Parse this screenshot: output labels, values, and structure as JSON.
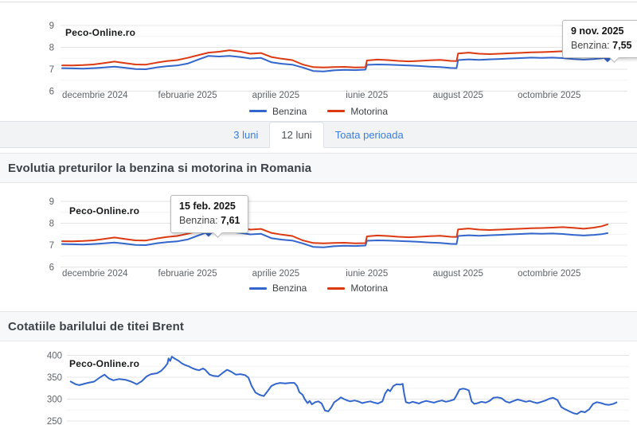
{
  "site": {
    "watermark": "Peco-Online.ro"
  },
  "tabs": {
    "items": [
      {
        "label": "3 luni",
        "active": false
      },
      {
        "label": "12 luni",
        "active": true
      },
      {
        "label": "Toata perioada",
        "active": false
      }
    ]
  },
  "sections": {
    "fuel_title": "Evolutia preturilor la benzina si motorina in Romania",
    "brent_title": "Cotatiile barilului de titei Brent"
  },
  "colors": {
    "benzina": "#3366cc",
    "motorina": "#dc3912",
    "brent": "#3366cc",
    "link": "#3b7ddd",
    "marker": "#3161c2"
  },
  "chart_data": [
    {
      "type": "line",
      "name": "fuel-prices-12-months-top",
      "x_axis_note": "days since 2024-11-09",
      "ylim": [
        6,
        9
      ],
      "y_ticks": [
        6,
        7,
        8,
        9
      ],
      "y_minor": [
        6.5,
        7.5,
        8.5
      ],
      "x_ticks": [
        {
          "label": "decembrie 2024",
          "day": 22
        },
        {
          "label": "februarie 2025",
          "day": 84
        },
        {
          "label": "aprilie 2025",
          "day": 143
        },
        {
          "label": "iunie 2025",
          "day": 204
        },
        {
          "label": "august 2025",
          "day": 265
        },
        {
          "label": "octombrie 2025",
          "day": 326
        }
      ],
      "series": [
        {
          "name": "Benzina",
          "color": "#3366cc"
        },
        {
          "name": "Motorina",
          "color": "#dc3912"
        }
      ],
      "points": [
        [
          0,
          7.05,
          7.18
        ],
        [
          7,
          7.04,
          7.17
        ],
        [
          14,
          7.03,
          7.19
        ],
        [
          21,
          7.05,
          7.22
        ],
        [
          28,
          7.08,
          7.28
        ],
        [
          35,
          7.12,
          7.35
        ],
        [
          42,
          7.07,
          7.28
        ],
        [
          49,
          7.01,
          7.22
        ],
        [
          56,
          7.0,
          7.21
        ],
        [
          63,
          7.08,
          7.3
        ],
        [
          70,
          7.14,
          7.37
        ],
        [
          77,
          7.17,
          7.42
        ],
        [
          84,
          7.26,
          7.52
        ],
        [
          91,
          7.44,
          7.64
        ],
        [
          98,
          7.61,
          7.76
        ],
        [
          105,
          7.58,
          7.8
        ],
        [
          112,
          7.61,
          7.87
        ],
        [
          119,
          7.56,
          7.81
        ],
        [
          126,
          7.49,
          7.71
        ],
        [
          133,
          7.52,
          7.74
        ],
        [
          140,
          7.32,
          7.56
        ],
        [
          147,
          7.25,
          7.48
        ],
        [
          154,
          7.21,
          7.42
        ],
        [
          161,
          7.08,
          7.22
        ],
        [
          168,
          6.92,
          7.1
        ],
        [
          175,
          6.9,
          7.08
        ],
        [
          182,
          6.95,
          7.1
        ],
        [
          189,
          6.97,
          7.11
        ],
        [
          196,
          6.96,
          7.08
        ],
        [
          203,
          6.98,
          7.09
        ],
        [
          204,
          7.2,
          7.4
        ],
        [
          211,
          7.22,
          7.44
        ],
        [
          218,
          7.21,
          7.42
        ],
        [
          225,
          7.19,
          7.38
        ],
        [
          232,
          7.17,
          7.36
        ],
        [
          239,
          7.15,
          7.38
        ],
        [
          246,
          7.12,
          7.41
        ],
        [
          253,
          7.1,
          7.43
        ],
        [
          260,
          7.06,
          7.38
        ],
        [
          264,
          7.05,
          7.37
        ],
        [
          265,
          7.42,
          7.72
        ],
        [
          272,
          7.45,
          7.76
        ],
        [
          279,
          7.43,
          7.71
        ],
        [
          286,
          7.45,
          7.69
        ],
        [
          293,
          7.47,
          7.71
        ],
        [
          300,
          7.49,
          7.73
        ],
        [
          307,
          7.51,
          7.75
        ],
        [
          314,
          7.53,
          7.77
        ],
        [
          321,
          7.52,
          7.78
        ],
        [
          328,
          7.53,
          7.8
        ],
        [
          335,
          7.51,
          7.82
        ],
        [
          342,
          7.47,
          7.79
        ],
        [
          349,
          7.44,
          7.75
        ],
        [
          356,
          7.47,
          7.8
        ],
        [
          361,
          7.5,
          7.86
        ],
        [
          365,
          7.55,
          7.95
        ]
      ],
      "tooltip": {
        "date": "9 nov. 2025",
        "label": "Benzina:",
        "value": "7,55",
        "value_num": 7.55,
        "day": 365
      }
    },
    {
      "type": "line",
      "name": "fuel-prices-12-months-main",
      "x_axis_note": "days since 2024-11-09",
      "ylim": [
        6,
        9
      ],
      "y_ticks": [
        6,
        7,
        8,
        9
      ],
      "y_minor": [
        6.5,
        7.5,
        8.5
      ],
      "x_ticks": [
        {
          "label": "decembrie 2024",
          "day": 22
        },
        {
          "label": "februarie 2025",
          "day": 84
        },
        {
          "label": "aprilie 2025",
          "day": 143
        },
        {
          "label": "iunie 2025",
          "day": 204
        },
        {
          "label": "august 2025",
          "day": 265
        },
        {
          "label": "octombrie 2025",
          "day": 326
        }
      ],
      "series": [
        {
          "name": "Benzina",
          "color": "#3366cc"
        },
        {
          "name": "Motorina",
          "color": "#dc3912"
        }
      ],
      "points": [
        [
          0,
          7.05,
          7.18
        ],
        [
          7,
          7.04,
          7.17
        ],
        [
          14,
          7.03,
          7.19
        ],
        [
          21,
          7.05,
          7.22
        ],
        [
          28,
          7.08,
          7.28
        ],
        [
          35,
          7.12,
          7.35
        ],
        [
          42,
          7.07,
          7.28
        ],
        [
          49,
          7.01,
          7.22
        ],
        [
          56,
          7.0,
          7.21
        ],
        [
          63,
          7.08,
          7.3
        ],
        [
          70,
          7.14,
          7.37
        ],
        [
          77,
          7.17,
          7.42
        ],
        [
          84,
          7.26,
          7.52
        ],
        [
          91,
          7.44,
          7.64
        ],
        [
          98,
          7.61,
          7.76
        ],
        [
          105,
          7.58,
          7.8
        ],
        [
          112,
          7.61,
          7.87
        ],
        [
          119,
          7.56,
          7.81
        ],
        [
          126,
          7.49,
          7.71
        ],
        [
          133,
          7.52,
          7.74
        ],
        [
          140,
          7.32,
          7.56
        ],
        [
          147,
          7.25,
          7.48
        ],
        [
          154,
          7.21,
          7.42
        ],
        [
          161,
          7.08,
          7.22
        ],
        [
          168,
          6.92,
          7.1
        ],
        [
          175,
          6.9,
          7.08
        ],
        [
          182,
          6.95,
          7.1
        ],
        [
          189,
          6.97,
          7.11
        ],
        [
          196,
          6.96,
          7.08
        ],
        [
          203,
          6.98,
          7.09
        ],
        [
          204,
          7.2,
          7.4
        ],
        [
          211,
          7.22,
          7.44
        ],
        [
          218,
          7.21,
          7.42
        ],
        [
          225,
          7.19,
          7.38
        ],
        [
          232,
          7.17,
          7.36
        ],
        [
          239,
          7.15,
          7.38
        ],
        [
          246,
          7.12,
          7.41
        ],
        [
          253,
          7.1,
          7.43
        ],
        [
          260,
          7.06,
          7.38
        ],
        [
          264,
          7.05,
          7.37
        ],
        [
          265,
          7.42,
          7.72
        ],
        [
          272,
          7.45,
          7.76
        ],
        [
          279,
          7.43,
          7.71
        ],
        [
          286,
          7.45,
          7.69
        ],
        [
          293,
          7.47,
          7.71
        ],
        [
          300,
          7.49,
          7.73
        ],
        [
          307,
          7.51,
          7.75
        ],
        [
          314,
          7.53,
          7.77
        ],
        [
          321,
          7.52,
          7.78
        ],
        [
          328,
          7.53,
          7.8
        ],
        [
          335,
          7.51,
          7.82
        ],
        [
          342,
          7.47,
          7.79
        ],
        [
          349,
          7.44,
          7.75
        ],
        [
          356,
          7.47,
          7.8
        ],
        [
          361,
          7.5,
          7.86
        ],
        [
          365,
          7.55,
          7.95
        ]
      ],
      "tooltip": {
        "date": "15 feb. 2025",
        "label": "Benzina:",
        "value": "7,61",
        "value_num": 7.61,
        "day": 98
      }
    },
    {
      "type": "line",
      "name": "brent-oil-barrel-quotes",
      "x_axis_note": "fraction of visible 12-month window",
      "ylim": [
        250,
        400
      ],
      "y_ticks": [
        250,
        300,
        350,
        400
      ],
      "y_minor": [
        275,
        325,
        375
      ],
      "series": [
        {
          "name": "Brent",
          "color": "#3366cc"
        }
      ],
      "points": [
        [
          0,
          341
        ],
        [
          0.01,
          334
        ],
        [
          0.017,
          332
        ],
        [
          0.032,
          337
        ],
        [
          0.044,
          340
        ],
        [
          0.055,
          350
        ],
        [
          0.063,
          356
        ],
        [
          0.071,
          347
        ],
        [
          0.079,
          343
        ],
        [
          0.09,
          346
        ],
        [
          0.102,
          344
        ],
        [
          0.112,
          340
        ],
        [
          0.122,
          334
        ],
        [
          0.131,
          341
        ],
        [
          0.14,
          352
        ],
        [
          0.148,
          357
        ],
        [
          0.159,
          359
        ],
        [
          0.166,
          364
        ],
        [
          0.173,
          373
        ],
        [
          0.178,
          381
        ],
        [
          0.18,
          393
        ],
        [
          0.183,
          387
        ],
        [
          0.186,
          397
        ],
        [
          0.192,
          392
        ],
        [
          0.198,
          388
        ],
        [
          0.204,
          382
        ],
        [
          0.21,
          378
        ],
        [
          0.217,
          375
        ],
        [
          0.223,
          371
        ],
        [
          0.229,
          368
        ],
        [
          0.236,
          366
        ],
        [
          0.243,
          370
        ],
        [
          0.247,
          367
        ],
        [
          0.255,
          356
        ],
        [
          0.262,
          353
        ],
        [
          0.271,
          352
        ],
        [
          0.279,
          360
        ],
        [
          0.287,
          367
        ],
        [
          0.294,
          363
        ],
        [
          0.303,
          356
        ],
        [
          0.311,
          357
        ],
        [
          0.32,
          355
        ],
        [
          0.326,
          349
        ],
        [
          0.332,
          330
        ],
        [
          0.339,
          315
        ],
        [
          0.346,
          310
        ],
        [
          0.354,
          307
        ],
        [
          0.361,
          318
        ],
        [
          0.368,
          330
        ],
        [
          0.376,
          335
        ],
        [
          0.384,
          337
        ],
        [
          0.393,
          336
        ],
        [
          0.402,
          337
        ],
        [
          0.41,
          337
        ],
        [
          0.415,
          330
        ],
        [
          0.419,
          316
        ],
        [
          0.425,
          310
        ],
        [
          0.429,
          300
        ],
        [
          0.434,
          291
        ],
        [
          0.438,
          296
        ],
        [
          0.442,
          288
        ],
        [
          0.448,
          293
        ],
        [
          0.454,
          295
        ],
        [
          0.46,
          290
        ],
        [
          0.466,
          274
        ],
        [
          0.472,
          272
        ],
        [
          0.477,
          280
        ],
        [
          0.483,
          293
        ],
        [
          0.489,
          298
        ],
        [
          0.495,
          304
        ],
        [
          0.501,
          300
        ],
        [
          0.507,
          297
        ],
        [
          0.512,
          295
        ],
        [
          0.52,
          297
        ],
        [
          0.527,
          295
        ],
        [
          0.534,
          291
        ],
        [
          0.541,
          293
        ],
        [
          0.549,
          295
        ],
        [
          0.556,
          292
        ],
        [
          0.563,
          290
        ],
        [
          0.571,
          295
        ],
        [
          0.576,
          313
        ],
        [
          0.581,
          322
        ],
        [
          0.585,
          318
        ],
        [
          0.591,
          330
        ],
        [
          0.597,
          334
        ],
        [
          0.603,
          333
        ],
        [
          0.608,
          335
        ],
        [
          0.611,
          310
        ],
        [
          0.614,
          293
        ],
        [
          0.62,
          291
        ],
        [
          0.626,
          294
        ],
        [
          0.632,
          292
        ],
        [
          0.638,
          290
        ],
        [
          0.643,
          293
        ],
        [
          0.651,
          296
        ],
        [
          0.658,
          294
        ],
        [
          0.665,
          292
        ],
        [
          0.672,
          295
        ],
        [
          0.68,
          297
        ],
        [
          0.687,
          294
        ],
        [
          0.694,
          296
        ],
        [
          0.702,
          299
        ],
        [
          0.707,
          310
        ],
        [
          0.712,
          322
        ],
        [
          0.718,
          324
        ],
        [
          0.723,
          323
        ],
        [
          0.729,
          320
        ],
        [
          0.734,
          295
        ],
        [
          0.739,
          289
        ],
        [
          0.745,
          291
        ],
        [
          0.752,
          294
        ],
        [
          0.76,
          292
        ],
        [
          0.767,
          296
        ],
        [
          0.774,
          303
        ],
        [
          0.782,
          304
        ],
        [
          0.789,
          302
        ],
        [
          0.796,
          295
        ],
        [
          0.803,
          292
        ],
        [
          0.811,
          296
        ],
        [
          0.818,
          299
        ],
        [
          0.825,
          297
        ],
        [
          0.833,
          294
        ],
        [
          0.84,
          296
        ],
        [
          0.847,
          293
        ],
        [
          0.854,
          291
        ],
        [
          0.862,
          294
        ],
        [
          0.869,
          297
        ],
        [
          0.876,
          301
        ],
        [
          0.883,
          303
        ],
        [
          0.891,
          298
        ],
        [
          0.898,
          282
        ],
        [
          0.905,
          277
        ],
        [
          0.913,
          272
        ],
        [
          0.92,
          268
        ],
        [
          0.927,
          266
        ],
        [
          0.934,
          272
        ],
        [
          0.941,
          270
        ],
        [
          0.949,
          277
        ],
        [
          0.956,
          289
        ],
        [
          0.963,
          293
        ],
        [
          0.971,
          291
        ],
        [
          0.978,
          288
        ],
        [
          0.985,
          287
        ],
        [
          0.993,
          289
        ],
        [
          1,
          293
        ]
      ]
    }
  ]
}
